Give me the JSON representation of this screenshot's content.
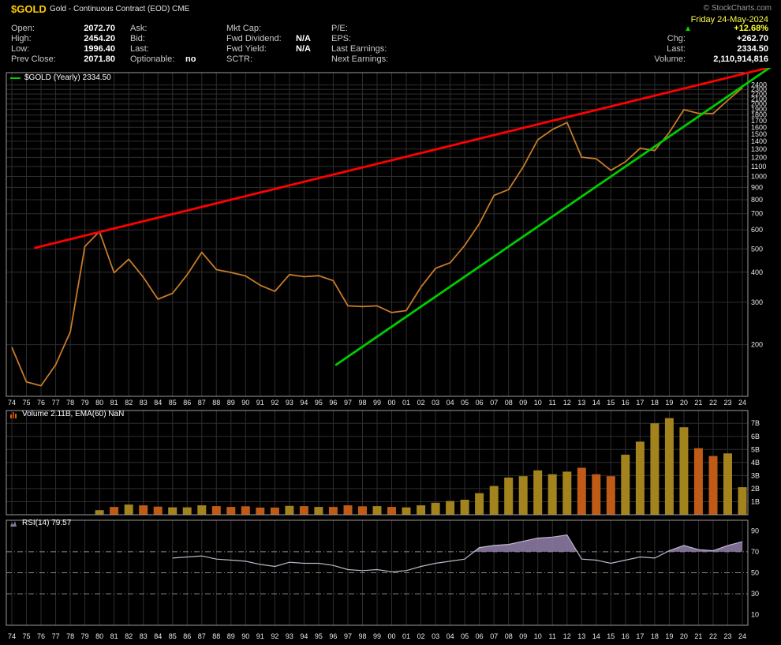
{
  "header": {
    "symbol": "$GOLD",
    "description": "Gold - Continuous Contract (EOD) CME",
    "copyright": "© StockCharts.com",
    "date": "Friday 24-May-2024",
    "change_arrow": "▲",
    "quote_columns": [
      [
        {
          "label": "Open:",
          "value": "2072.70"
        },
        {
          "label": "High:",
          "value": "2454.20"
        },
        {
          "label": "Low:",
          "value": "1996.40"
        },
        {
          "label": "Prev Close:",
          "value": "2071.80"
        }
      ],
      [
        {
          "label": "Ask:",
          "value": ""
        },
        {
          "label": "Bid:",
          "value": ""
        },
        {
          "label": "Last:",
          "value": ""
        },
        {
          "label": "Optionable:",
          "value": "no"
        }
      ],
      [
        {
          "label": "Mkt Cap:",
          "value": ""
        },
        {
          "label": "Fwd Dividend:",
          "value": "N/A"
        },
        {
          "label": "Fwd Yield:",
          "value": "N/A"
        },
        {
          "label": "SCTR:",
          "value": ""
        }
      ],
      [
        {
          "label": "P/E:",
          "value": ""
        },
        {
          "label": "EPS:",
          "value": ""
        },
        {
          "label": "Last Earnings:",
          "value": ""
        },
        {
          "label": "Next Earnings:",
          "value": ""
        }
      ],
      [
        {
          "label": "",
          "value": "+12.68%"
        },
        {
          "label": "Chg:",
          "value": "+262.70"
        },
        {
          "label": "Last:",
          "value": "2334.50"
        },
        {
          "label": "Volume:",
          "value": "2,110,914,816"
        }
      ]
    ]
  },
  "colors": {
    "background": "#000000",
    "symbol": "#ffcc00",
    "date": "#ffff4d",
    "change_positive": "#ffff33",
    "arrow_up": "#00dd00",
    "grid": "#2e2e2e",
    "panel_border": "#9b9b9b"
  },
  "chart_data": [
    {
      "type": "line",
      "title": "$GOLD (Yearly)",
      "legend": "$GOLD (Yearly) 2334.50",
      "yscale": "log",
      "ylim": [
        122,
        2700
      ],
      "y_ticks": [
        200,
        300,
        400,
        500,
        600,
        700,
        800,
        900,
        1000,
        1100,
        1200,
        1300,
        1400,
        1500,
        1600,
        1700,
        1800,
        1900,
        2000,
        2100,
        2200,
        2300,
        2400
      ],
      "line_color": "#c87a2a",
      "x": [
        "74",
        "75",
        "76",
        "77",
        "78",
        "79",
        "80",
        "81",
        "82",
        "83",
        "84",
        "85",
        "86",
        "87",
        "88",
        "89",
        "90",
        "91",
        "92",
        "93",
        "94",
        "95",
        "96",
        "97",
        "98",
        "99",
        "00",
        "01",
        "02",
        "03",
        "04",
        "05",
        "06",
        "07",
        "08",
        "09",
        "10",
        "11",
        "12",
        "13",
        "14",
        "15",
        "16",
        "17",
        "18",
        "19",
        "20",
        "21",
        "22",
        "23",
        "24"
      ],
      "series": [
        {
          "name": "$GOLD yearly close",
          "values": [
            195,
            140,
            135,
            165,
            226,
            512,
            590,
            398,
            453,
            381,
            309,
            327,
            390,
            484,
            410,
            399,
            386,
            353,
            333,
            391,
            383,
            387,
            369,
            290,
            288,
            290,
            272,
            277,
            347,
            415,
            438,
            517,
            636,
            834,
            882,
            1096,
            1421,
            1566,
            1675,
            1202,
            1184,
            1060,
            1151,
            1309,
            1281,
            1523,
            1895,
            1829,
            1826,
            2072,
            2334.5
          ]
        }
      ],
      "trendlines": [
        {
          "name": "resistance-trendline",
          "color": "#ff0000",
          "from": {
            "year": 1975.6,
            "value": 505
          },
          "to": {
            "year": 2026.5,
            "value": 2900
          }
        },
        {
          "name": "support-trendline",
          "color": "#00cc00",
          "from": {
            "year": 1996.2,
            "value": 165
          },
          "to": {
            "year": 2026.3,
            "value": 2950
          }
        }
      ]
    },
    {
      "type": "bar",
      "title": "Volume",
      "legend": "Volume 2.11B, EMA(60) NaN",
      "unit": "billions",
      "ylim": [
        0,
        7.8
      ],
      "y_ticks": [
        "1B",
        "2B",
        "3B",
        "4B",
        "5B",
        "6B",
        "7B"
      ],
      "colors": {
        "up": "#a3831d",
        "down": "#bf5a17"
      },
      "x": [
        "74",
        "75",
        "76",
        "77",
        "78",
        "79",
        "80",
        "81",
        "82",
        "83",
        "84",
        "85",
        "86",
        "87",
        "88",
        "89",
        "90",
        "91",
        "92",
        "93",
        "94",
        "95",
        "96",
        "97",
        "98",
        "99",
        "00",
        "01",
        "02",
        "03",
        "04",
        "05",
        "06",
        "07",
        "08",
        "09",
        "10",
        "11",
        "12",
        "13",
        "14",
        "15",
        "16",
        "17",
        "18",
        "19",
        "20",
        "21",
        "22",
        "23",
        "24"
      ],
      "values": [
        0,
        0,
        0,
        0,
        0,
        0,
        0.35,
        0.6,
        0.78,
        0.72,
        0.62,
        0.57,
        0.57,
        0.72,
        0.66,
        0.6,
        0.65,
        0.55,
        0.55,
        0.68,
        0.66,
        0.6,
        0.6,
        0.72,
        0.65,
        0.66,
        0.6,
        0.56,
        0.72,
        0.92,
        1.05,
        1.15,
        1.65,
        2.2,
        2.85,
        2.95,
        3.4,
        3.1,
        3.3,
        3.6,
        3.1,
        2.95,
        4.6,
        5.6,
        7,
        7.4,
        6.7,
        5.1,
        4.5,
        4.7,
        2.11
      ],
      "directions": [
        "u",
        "d",
        "d",
        "u",
        "u",
        "u",
        "u",
        "d",
        "u",
        "d",
        "d",
        "u",
        "u",
        "u",
        "d",
        "d",
        "d",
        "d",
        "d",
        "u",
        "d",
        "u",
        "d",
        "d",
        "d",
        "u",
        "d",
        "u",
        "u",
        "u",
        "u",
        "u",
        "u",
        "u",
        "u",
        "u",
        "u",
        "u",
        "u",
        "d",
        "d",
        "d",
        "u",
        "u",
        "u",
        "u",
        "u",
        "d",
        "d",
        "u",
        "u"
      ]
    },
    {
      "type": "line",
      "title": "RSI(14)",
      "legend": "RSI(14) 79.57",
      "ylim": [
        0,
        100
      ],
      "y_ticks": [
        10,
        30,
        50,
        70,
        90
      ],
      "bands": [
        30,
        50,
        70
      ],
      "fill_above": 70,
      "line_color": "#bdb6c9",
      "fill_color": "#8b79a3",
      "x": [
        "74",
        "75",
        "76",
        "77",
        "78",
        "79",
        "80",
        "81",
        "82",
        "83",
        "84",
        "85",
        "86",
        "87",
        "88",
        "89",
        "90",
        "91",
        "92",
        "93",
        "94",
        "95",
        "96",
        "97",
        "98",
        "99",
        "00",
        "01",
        "02",
        "03",
        "04",
        "05",
        "06",
        "07",
        "08",
        "09",
        "10",
        "11",
        "12",
        "13",
        "14",
        "15",
        "16",
        "17",
        "18",
        "19",
        "20",
        "21",
        "22",
        "23",
        "24"
      ],
      "values": [
        null,
        null,
        null,
        null,
        null,
        null,
        null,
        null,
        null,
        null,
        null,
        64,
        65,
        66,
        63,
        62,
        61,
        58,
        56,
        60,
        59,
        59,
        57,
        53,
        52,
        53,
        51,
        52,
        56,
        59,
        61,
        63,
        74,
        76,
        77,
        80,
        83,
        84,
        86,
        63,
        62,
        59,
        62,
        65,
        64,
        71,
        76,
        72,
        71,
        76,
        79.57
      ]
    }
  ]
}
